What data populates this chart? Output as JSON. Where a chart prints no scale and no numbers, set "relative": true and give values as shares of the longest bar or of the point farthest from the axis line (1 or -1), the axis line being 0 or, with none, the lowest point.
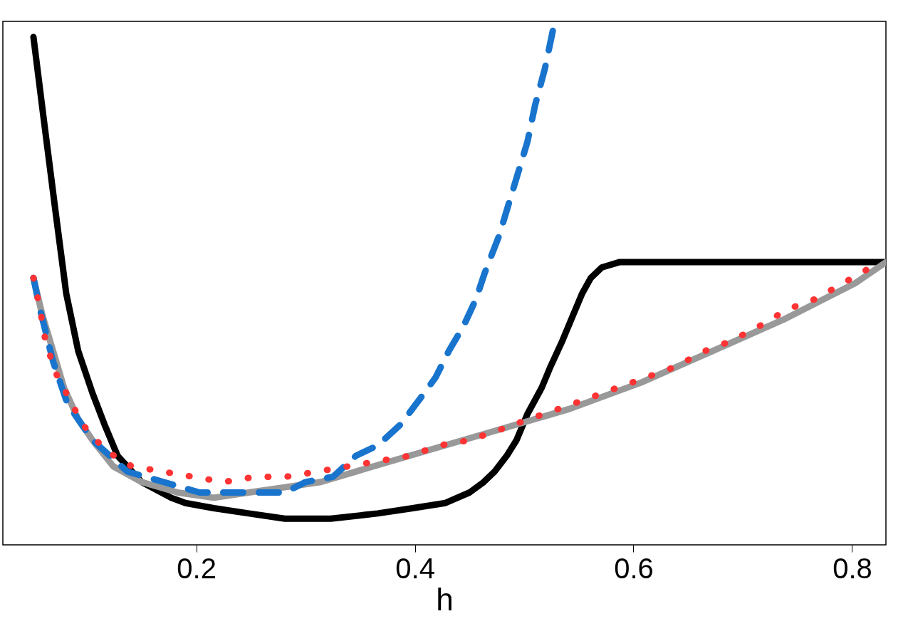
{
  "chart_data": {
    "type": "line",
    "xlabel": "h",
    "relative": true,
    "xlim": [
      0.023,
      0.831
    ],
    "xticks": [
      0.2,
      0.4,
      0.6,
      0.8
    ],
    "tick_labels": "x",
    "grid": false,
    "marker": "none",
    "series": [
      {
        "color": "#000000",
        "line_style": "solid",
        "x": [
          0.051,
          0.06,
          0.071,
          0.081,
          0.092,
          0.105,
          0.116,
          0.128,
          0.15,
          0.177,
          0.19,
          0.216,
          0.248,
          0.281,
          0.323,
          0.366,
          0.398,
          0.428,
          0.45,
          0.463,
          0.473,
          0.484,
          0.493,
          0.503,
          0.516,
          0.524,
          0.535,
          0.545,
          0.553,
          0.561,
          0.571,
          0.587,
          0.607,
          0.672,
          0.737,
          0.831
        ],
        "values": [
          0.97,
          0.82,
          0.64,
          0.48,
          0.37,
          0.29,
          0.23,
          0.17,
          0.12,
          0.09,
          0.08,
          0.07,
          0.06,
          0.05,
          0.05,
          0.06,
          0.07,
          0.08,
          0.1,
          0.12,
          0.14,
          0.17,
          0.2,
          0.25,
          0.3,
          0.34,
          0.39,
          0.44,
          0.48,
          0.51,
          0.53,
          0.54,
          0.54,
          0.54,
          0.54,
          0.54
        ]
      },
      {
        "color": "#999999",
        "line_style": "solid",
        "x": [
          0.051,
          0.059,
          0.069,
          0.079,
          0.092,
          0.105,
          0.124,
          0.15,
          0.183,
          0.216,
          0.248,
          0.281,
          0.314,
          0.346,
          0.411,
          0.477,
          0.542,
          0.607,
          0.672,
          0.737,
          0.803,
          0.831
        ],
        "values": [
          0.51,
          0.44,
          0.37,
          0.3,
          0.24,
          0.2,
          0.15,
          0.12,
          0.1,
          0.09,
          0.1,
          0.11,
          0.12,
          0.14,
          0.18,
          0.22,
          0.26,
          0.31,
          0.37,
          0.43,
          0.5,
          0.54
        ]
      },
      {
        "color": "#ff3333",
        "line_style": "dotted",
        "x": [
          0.051,
          0.057,
          0.062,
          0.071,
          0.096,
          0.117,
          0.141,
          0.169,
          0.197,
          0.225,
          0.254,
          0.282,
          0.311,
          0.339,
          0.367,
          0.395,
          0.423,
          0.45,
          0.478,
          0.504,
          0.532,
          0.559,
          0.585,
          0.612,
          0.638,
          0.665,
          0.69,
          0.717,
          0.741,
          0.767,
          0.792,
          0.817
        ],
        "values": [
          0.51,
          0.45,
          0.39,
          0.33,
          0.23,
          0.18,
          0.15,
          0.14,
          0.13,
          0.12,
          0.13,
          0.13,
          0.14,
          0.15,
          0.16,
          0.17,
          0.19,
          0.2,
          0.22,
          0.24,
          0.26,
          0.28,
          0.3,
          0.32,
          0.34,
          0.37,
          0.39,
          0.42,
          0.45,
          0.47,
          0.5,
          0.53
        ]
      },
      {
        "color": "#1874cd",
        "line_style": "dashed",
        "x": [
          0.051,
          0.057,
          0.069,
          0.082,
          0.105,
          0.137,
          0.17,
          0.203,
          0.248,
          0.281,
          0.3,
          0.325,
          0.346,
          0.366,
          0.387,
          0.405,
          0.419,
          0.431,
          0.445,
          0.456,
          0.464,
          0.477,
          0.49,
          0.503,
          0.51,
          0.519,
          0.528
        ],
        "values": [
          0.51,
          0.45,
          0.35,
          0.27,
          0.2,
          0.14,
          0.12,
          0.1,
          0.1,
          0.1,
          0.12,
          0.13,
          0.17,
          0.19,
          0.23,
          0.28,
          0.32,
          0.37,
          0.42,
          0.47,
          0.52,
          0.59,
          0.68,
          0.77,
          0.84,
          0.91,
          1
        ]
      }
    ]
  }
}
